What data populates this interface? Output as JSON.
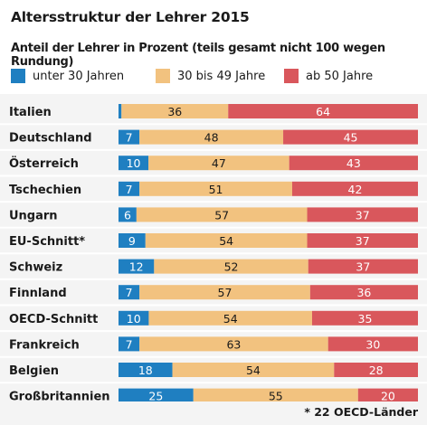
{
  "title": "Altersstruktur der Lehrer 2015",
  "subtitle": "Anteil der Lehrer in Prozent (teils gesamt nicht 100 wegen Rundung)",
  "footnote": "* 22 OECD-Länder",
  "colors": {
    "under30": "#1f7fc1",
    "mid": "#f2c27f",
    "over50": "#d9575c"
  },
  "legend": [
    {
      "label": "unter 30 Jahren",
      "color": "#1f7fc1"
    },
    {
      "label": "30 bis 49 Jahre",
      "color": "#f2c27f"
    },
    {
      "label": "ab 50 Jahre",
      "color": "#d9575c"
    }
  ],
  "chart_data": {
    "type": "bar",
    "orientation": "horizontal",
    "stacked": true,
    "title": "Altersstruktur der Lehrer 2015",
    "subtitle": "Anteil der Lehrer in Prozent (teils gesamt nicht 100 wegen Rundung)",
    "categories": [
      "Italien",
      "Deutschland",
      "Österreich",
      "Tschechien",
      "Ungarn",
      "EU-Schnitt*",
      "Schweiz",
      "Finnland",
      "OECD-Schnitt",
      "Frankreich",
      "Belgien",
      "Großbritannien"
    ],
    "series": [
      {
        "name": "unter 30 Jahren",
        "values": [
          1,
          7,
          10,
          7,
          6,
          9,
          12,
          7,
          10,
          7,
          18,
          25
        ]
      },
      {
        "name": "30 bis 49 Jahre",
        "values": [
          36,
          48,
          47,
          51,
          57,
          54,
          52,
          57,
          54,
          63,
          54,
          55
        ]
      },
      {
        "name": "ab 50 Jahre",
        "values": [
          64,
          45,
          43,
          42,
          37,
          37,
          37,
          36,
          35,
          30,
          28,
          20
        ]
      }
    ],
    "legend": "top",
    "grid": false
  }
}
